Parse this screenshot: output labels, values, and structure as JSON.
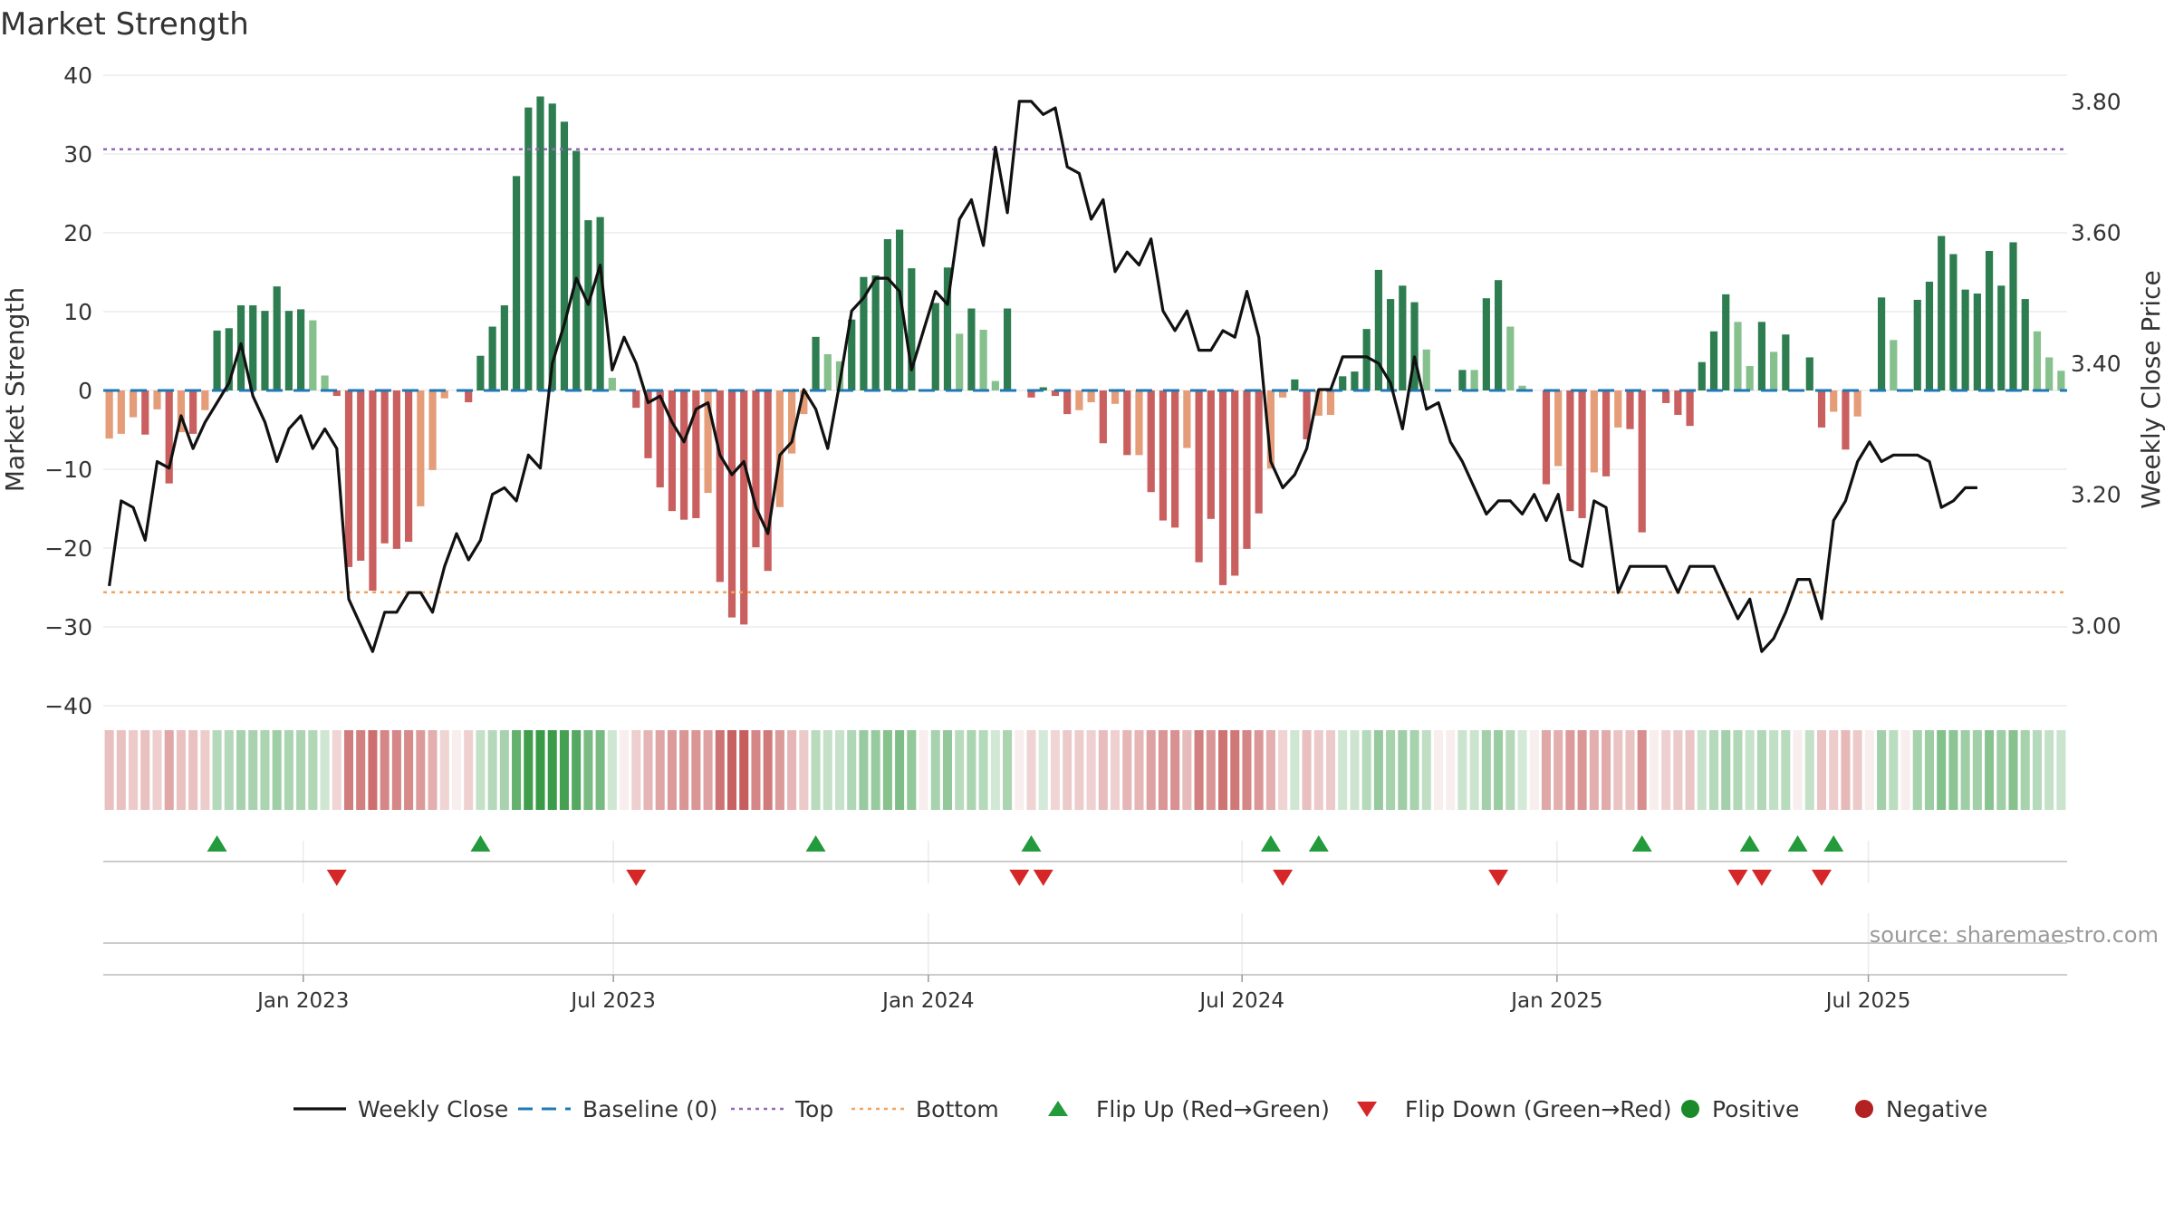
{
  "chart_data": {
    "type": "bar",
    "title": "Market Strength",
    "ylabel_left": "Market Strength",
    "ylabel_right": "Weekly Close Price",
    "ylim_left": [
      -40,
      40
    ],
    "left_ticks": [
      "40",
      "30",
      "20",
      "10",
      "0",
      "−10",
      "−20",
      "−30",
      "−40"
    ],
    "left_tick_values": [
      40,
      30,
      20,
      10,
      0,
      -10,
      -20,
      -30,
      -40
    ],
    "ylim_right": [
      2.88,
      3.84
    ],
    "right_ticks": [
      "3.80",
      "3.60",
      "3.40",
      "3.20",
      "3.00"
    ],
    "right_tick_values": [
      3.8,
      3.6,
      3.4,
      3.2,
      3.0
    ],
    "x_ticks": [
      "Jan 2023",
      "Jul 2023",
      "Jan 2024",
      "Jul 2024",
      "Jan 2025",
      "Jul 2025"
    ],
    "x_tick_weeks": [
      16.7,
      42.6,
      68.9,
      95.1,
      121.4,
      147.4
    ],
    "top_level": 30.6,
    "bottom_level": -25.6,
    "source": "source: sharemaestro.com",
    "strength": [
      -6.1,
      -5.5,
      -3.4,
      -5.6,
      -2.4,
      -11.8,
      -5.3,
      -5.5,
      -2.5,
      7.6,
      7.9,
      10.8,
      10.8,
      10.1,
      13.2,
      10.1,
      10.3,
      8.9,
      1.9,
      -0.7,
      -22.4,
      -21.6,
      -25.4,
      -19.4,
      -20.1,
      -19.2,
      -14.7,
      -10.1,
      -1,
      0,
      -1.5,
      4.4,
      8.1,
      10.8,
      27.2,
      35.9,
      37.3,
      36.4,
      34.1,
      30.4,
      21.6,
      22,
      1.6,
      0,
      -2.2,
      -8.6,
      -12.3,
      -15.3,
      -16.4,
      -16.2,
      -13,
      -24.3,
      -28.8,
      -29.7,
      -19.9,
      -22.9,
      -14.8,
      -8,
      -3,
      6.8,
      4.6,
      3.7,
      9,
      14.4,
      14.6,
      19.2,
      20.4,
      15.5,
      0,
      11.1,
      15.6,
      7.2,
      10.4,
      7.7,
      1.2,
      10.4,
      0,
      -0.9,
      0.4,
      -0.7,
      -3,
      -2.5,
      -1.5,
      -6.7,
      -1.7,
      -8.2,
      -8.2,
      -12.9,
      -16.5,
      -17.4,
      -7.3,
      -21.8,
      -16.3,
      -24.7,
      -23.5,
      -20.1,
      -15.6,
      -9.9,
      -0.9,
      1.4,
      -6.2,
      -3.2,
      -3.1,
      1.8,
      2.4,
      7.8,
      15.3,
      11.6,
      13.3,
      11.2,
      5.2,
      0,
      0,
      2.6,
      2.6,
      11.7,
      14,
      8.1,
      0.6,
      0,
      -11.9,
      -9.6,
      -15.3,
      -16.2,
      -10.4,
      -10.9,
      -4.7,
      -4.9,
      -18,
      0,
      -1.6,
      -3.1,
      -4.5,
      3.6,
      7.5,
      12.2,
      8.7,
      3.1,
      8.7,
      4.9,
      7.1,
      0,
      4.2,
      -4.7,
      -2.7,
      -7.5,
      -3.3,
      0,
      11.8,
      6.4,
      0,
      11.5,
      13.8,
      19.6,
      17.3,
      12.8,
      12.3,
      17.7,
      13.3,
      18.8,
      11.6,
      7.5,
      4.2,
      2.5
    ],
    "weekly_close": [
      3.06,
      3.19,
      3.18,
      3.13,
      3.25,
      3.24,
      3.32,
      3.27,
      3.31,
      3.34,
      3.37,
      3.43,
      3.35,
      3.31,
      3.25,
      3.3,
      3.32,
      3.27,
      3.3,
      3.27,
      3.04,
      3,
      2.96,
      3.02,
      3.02,
      3.05,
      3.05,
      3.02,
      3.09,
      3.14,
      3.1,
      3.13,
      3.2,
      3.21,
      3.19,
      3.26,
      3.24,
      3.4,
      3.46,
      3.53,
      3.49,
      3.55,
      3.39,
      3.44,
      3.4,
      3.34,
      3.35,
      3.31,
      3.28,
      3.33,
      3.34,
      3.26,
      3.23,
      3.25,
      3.18,
      3.14,
      3.26,
      3.28,
      3.36,
      3.33,
      3.27,
      3.37,
      3.48,
      3.5,
      3.53,
      3.53,
      3.51,
      3.39,
      3.45,
      3.51,
      3.49,
      3.62,
      3.65,
      3.58,
      3.73,
      3.63,
      3.8,
      3.8,
      3.78,
      3.79,
      3.7,
      3.69,
      3.62,
      3.65,
      3.54,
      3.57,
      3.55,
      3.59,
      3.48,
      3.45,
      3.48,
      3.42,
      3.42,
      3.45,
      3.44,
      3.51,
      3.44,
      3.25,
      3.21,
      3.23,
      3.27,
      3.36,
      3.36,
      3.41,
      3.41,
      3.41,
      3.4,
      3.37,
      3.3,
      3.41,
      3.33,
      3.34,
      3.28,
      3.25,
      3.21,
      3.17,
      3.19,
      3.19,
      3.17,
      3.2,
      3.16,
      3.2,
      3.1,
      3.09,
      3.19,
      3.18,
      3.05,
      3.09,
      3.09,
      3.09,
      3.09,
      3.05,
      3.09,
      3.09,
      3.09,
      3.05,
      3.01,
      3.04,
      2.96,
      2.98,
      3.02,
      3.07,
      3.07,
      3.01,
      3.16,
      3.19,
      3.25,
      3.28,
      3.25,
      3.26,
      3.26,
      3.26,
      3.25,
      3.18,
      3.19,
      3.21,
      3.21
    ],
    "flip_up_weeks": [
      9,
      31,
      59,
      77,
      97,
      101,
      128,
      137,
      141,
      144
    ],
    "flip_down_weeks": [
      19,
      44,
      76,
      78,
      98,
      116,
      136,
      138,
      143
    ],
    "colors": {
      "positive_strong": "#2e7d50",
      "positive_weak": "#86c18d",
      "negative_strong": "#c95f5f",
      "negative_weak": "#e59c78",
      "close_line": "#111111",
      "baseline": "#1f77b4",
      "top_line": "#9467bd",
      "bottom_line": "#f0a35e",
      "flip_up": "#239a3b",
      "flip_down": "#d62728",
      "positive_marker": "#1a8a2a",
      "negative_marker": "#b22222"
    },
    "legend_placement": "bottom-center",
    "legend": [
      {
        "label": "Weekly Close",
        "kind": "line"
      },
      {
        "label": "Baseline (0)",
        "kind": "dash"
      },
      {
        "label": "Top",
        "kind": "dot-purple"
      },
      {
        "label": "Bottom",
        "kind": "dot-orange"
      },
      {
        "label": "Flip Up (Red→Green)",
        "kind": "tri-up"
      },
      {
        "label": "Flip Down (Green→Red)",
        "kind": "tri-down"
      },
      {
        "label": "Positive",
        "kind": "circle-green"
      },
      {
        "label": "Negative",
        "kind": "circle-red"
      }
    ]
  }
}
